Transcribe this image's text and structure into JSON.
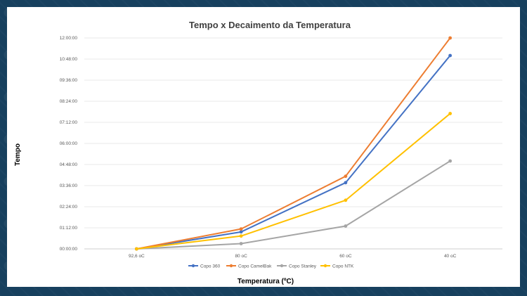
{
  "chart_data": {
    "type": "line",
    "title": "Tempo x Decaimento da Temperatura",
    "xlabel": "Temperatura (ºC)",
    "ylabel": "Tempo",
    "categories": [
      "92,6 oC",
      "80 oC",
      "60 oC",
      "40 oC"
    ],
    "y_unit": "minutes",
    "ylim": [
      0,
      720
    ],
    "y_ticks": [
      0,
      72,
      144,
      216,
      288,
      360,
      432,
      504,
      576,
      648,
      720
    ],
    "y_tick_labels": [
      "00:00:00",
      "01:12:00",
      "02:24:00",
      "03:36:00",
      "04:48:00",
      "06:00:00",
      "07:12:00",
      "08:24:00",
      "09:36:00",
      "10:48:00",
      "12:00:00"
    ],
    "grid": true,
    "legend": "bottom",
    "series": [
      {
        "name": "Copo 360",
        "color": "#4472c4",
        "values": [
          0,
          58,
          226,
          660
        ]
      },
      {
        "name": "Copo CamelBak",
        "color": "#ed7d31",
        "values": [
          0,
          68,
          248,
          720
        ]
      },
      {
        "name": "Copo Stanley",
        "color": "#a5a5a5",
        "values": [
          0,
          18,
          78,
          300
        ]
      },
      {
        "name": "Copo NTK",
        "color": "#ffc000",
        "values": [
          0,
          44,
          166,
          462
        ]
      }
    ]
  }
}
